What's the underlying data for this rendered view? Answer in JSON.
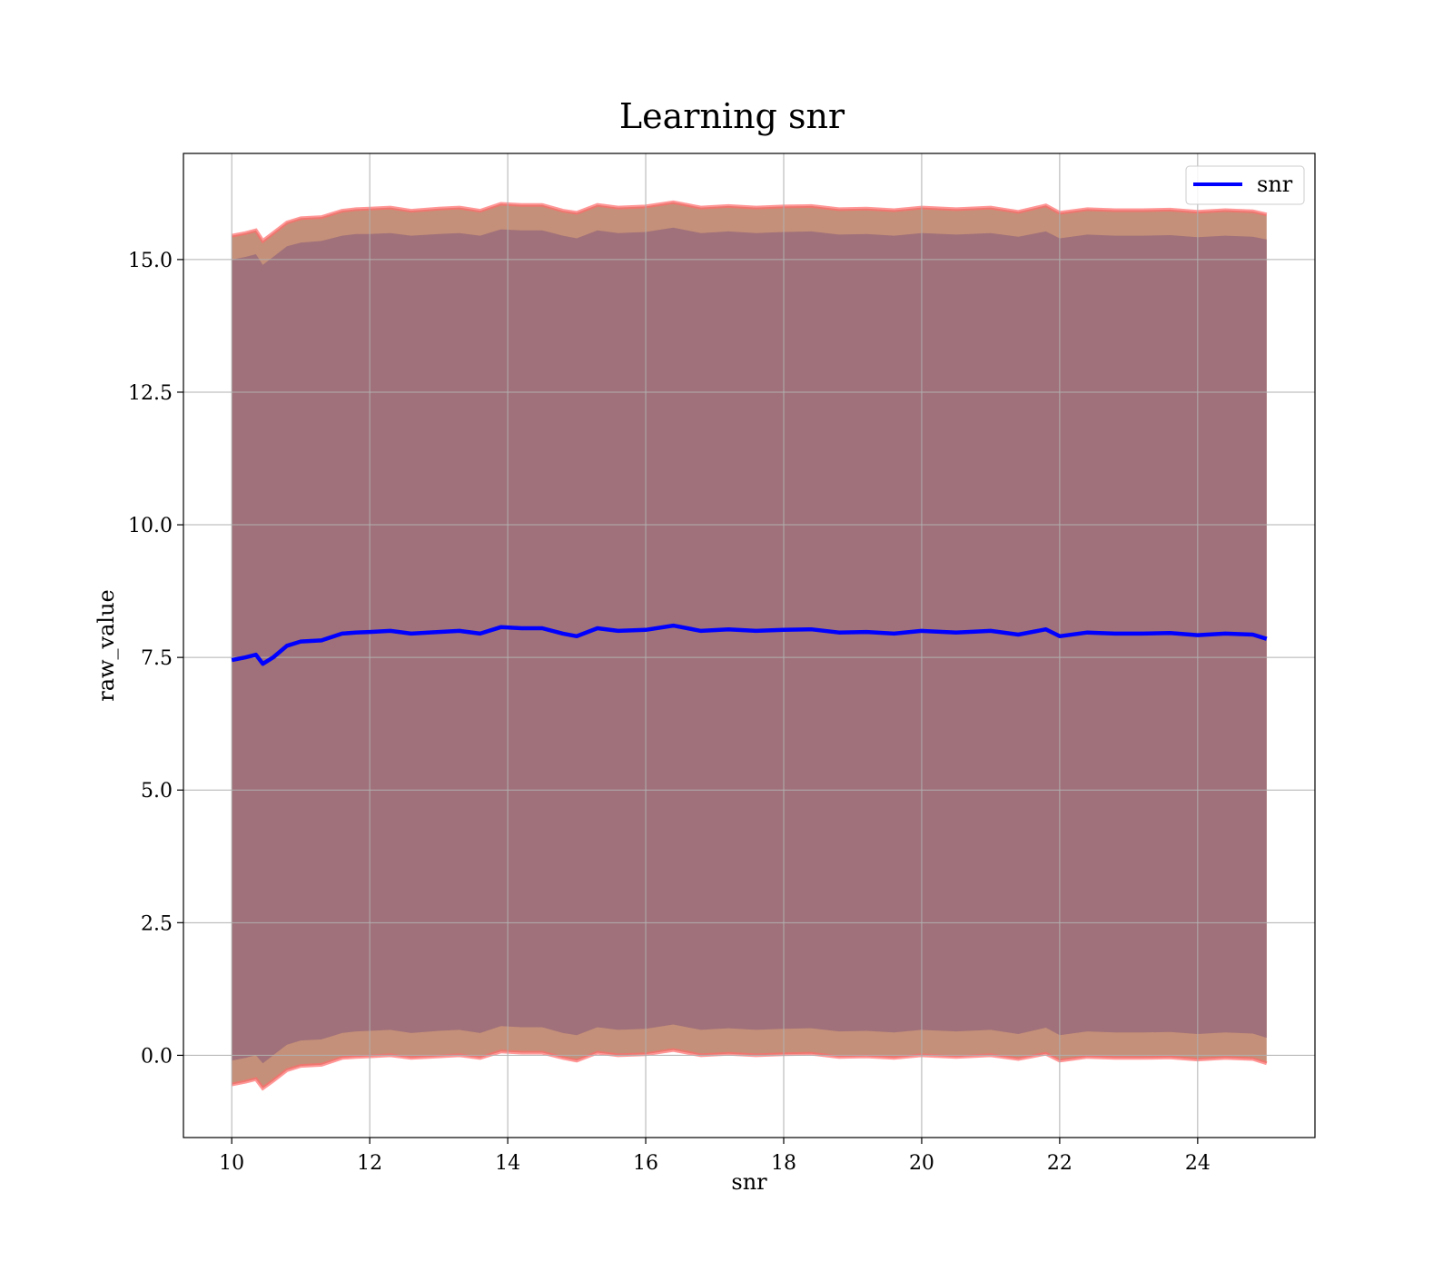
{
  "chart_data": {
    "type": "line",
    "title": "Learning snr",
    "xlabel": "snr",
    "ylabel": "raw_value",
    "xlim": [
      9.3,
      25.7
    ],
    "ylim": [
      -1.55,
      17.0
    ],
    "xticks": [
      10,
      12,
      14,
      16,
      18,
      20,
      22,
      24
    ],
    "yticks": [
      0.0,
      2.5,
      5.0,
      7.5,
      10.0,
      12.5,
      15.0
    ],
    "ytick_labels": [
      "0.0",
      "2.5",
      "5.0",
      "7.5",
      "10.0",
      "12.5",
      "15.0"
    ],
    "grid": true,
    "legend": {
      "placement": "top-right",
      "entries": [
        "snr"
      ]
    },
    "colors": {
      "line": "#0000ff",
      "inner_band": "#a0717a",
      "outer_band": "#c59079",
      "outer_edge": "#ff6b6b",
      "grid": "#b0b0b0"
    },
    "series": [
      {
        "name": "snr",
        "x": [
          10.0,
          10.2,
          10.35,
          10.45,
          10.6,
          10.8,
          11.0,
          11.3,
          11.6,
          11.8,
          12.0,
          12.3,
          12.6,
          13.0,
          13.3,
          13.6,
          13.9,
          14.2,
          14.5,
          14.8,
          15.0,
          15.3,
          15.6,
          16.0,
          16.4,
          16.8,
          17.2,
          17.6,
          18.0,
          18.4,
          18.8,
          19.2,
          19.6,
          20.0,
          20.5,
          21.0,
          21.4,
          21.8,
          22.0,
          22.4,
          22.8,
          23.2,
          23.6,
          24.0,
          24.4,
          24.8,
          25.0
        ],
        "y": [
          7.45,
          7.5,
          7.55,
          7.38,
          7.5,
          7.72,
          7.8,
          7.82,
          7.95,
          7.97,
          7.98,
          8.0,
          7.95,
          7.98,
          8.0,
          7.95,
          8.07,
          8.05,
          8.05,
          7.95,
          7.9,
          8.05,
          8.0,
          8.02,
          8.1,
          8.0,
          8.03,
          8.0,
          8.02,
          8.03,
          7.97,
          7.98,
          7.95,
          8.0,
          7.97,
          8.0,
          7.93,
          8.03,
          7.9,
          7.97,
          7.95,
          7.95,
          7.96,
          7.92,
          7.95,
          7.93,
          7.85
        ]
      }
    ],
    "bands": {
      "inner_upper": [
        15.0,
        15.05,
        15.1,
        14.9,
        15.05,
        15.25,
        15.32,
        15.35,
        15.45,
        15.48,
        15.48,
        15.5,
        15.45,
        15.48,
        15.5,
        15.45,
        15.57,
        15.55,
        15.55,
        15.45,
        15.4,
        15.55,
        15.5,
        15.52,
        15.6,
        15.5,
        15.53,
        15.5,
        15.52,
        15.53,
        15.47,
        15.48,
        15.45,
        15.5,
        15.47,
        15.5,
        15.43,
        15.53,
        15.4,
        15.47,
        15.45,
        15.45,
        15.46,
        15.42,
        15.45,
        15.43,
        15.38
      ],
      "outer_upper": [
        15.45,
        15.5,
        15.55,
        15.35,
        15.5,
        15.7,
        15.78,
        15.8,
        15.92,
        15.95,
        15.96,
        15.98,
        15.92,
        15.96,
        15.98,
        15.92,
        16.05,
        16.03,
        16.03,
        15.92,
        15.88,
        16.03,
        15.98,
        16.0,
        16.08,
        15.98,
        16.01,
        15.98,
        16.0,
        16.01,
        15.95,
        15.96,
        15.93,
        15.98,
        15.95,
        15.98,
        15.9,
        16.02,
        15.88,
        15.95,
        15.93,
        15.93,
        15.94,
        15.9,
        15.93,
        15.91,
        15.85
      ],
      "inner_lower": [
        -0.1,
        -0.05,
        0.0,
        -0.15,
        0.0,
        0.2,
        0.28,
        0.3,
        0.42,
        0.45,
        0.46,
        0.48,
        0.42,
        0.46,
        0.48,
        0.42,
        0.55,
        0.53,
        0.53,
        0.42,
        0.38,
        0.53,
        0.48,
        0.5,
        0.58,
        0.48,
        0.51,
        0.48,
        0.5,
        0.51,
        0.45,
        0.46,
        0.43,
        0.48,
        0.45,
        0.48,
        0.4,
        0.52,
        0.38,
        0.45,
        0.43,
        0.43,
        0.44,
        0.4,
        0.43,
        0.41,
        0.33
      ],
      "outer_lower": [
        -0.55,
        -0.5,
        -0.45,
        -0.62,
        -0.48,
        -0.28,
        -0.2,
        -0.18,
        -0.05,
        -0.03,
        -0.02,
        0.0,
        -0.05,
        -0.02,
        0.0,
        -0.05,
        0.07,
        0.05,
        0.05,
        -0.05,
        -0.1,
        0.05,
        0.0,
        0.02,
        0.1,
        0.0,
        0.03,
        0.0,
        0.02,
        0.03,
        -0.03,
        -0.02,
        -0.05,
        0.0,
        -0.03,
        0.0,
        -0.07,
        0.03,
        -0.1,
        -0.03,
        -0.05,
        -0.05,
        -0.04,
        -0.08,
        -0.05,
        -0.07,
        -0.15
      ]
    }
  }
}
